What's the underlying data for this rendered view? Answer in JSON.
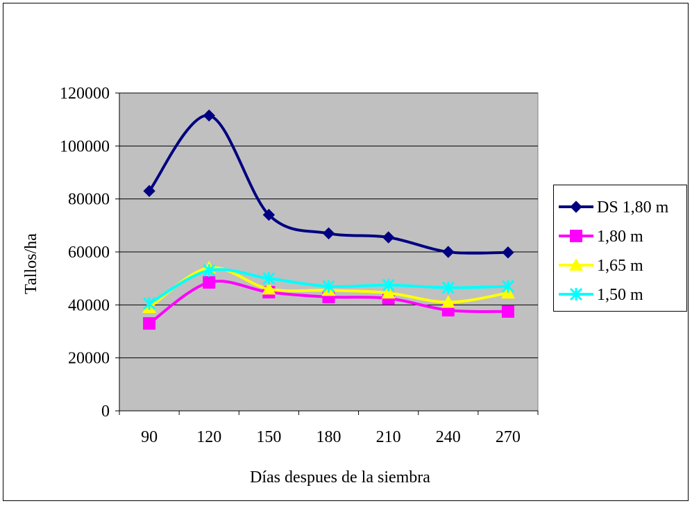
{
  "chart_data": {
    "type": "line",
    "xlabel": "Días despues de la siembra",
    "ylabel": "Tallos/ha",
    "categories": [
      "90",
      "120",
      "150",
      "180",
      "210",
      "240",
      "270"
    ],
    "series": [
      {
        "name": "DS 1,80 m",
        "color": "#000080",
        "marker": "diamond",
        "values": [
          83000,
          111500,
          74000,
          67000,
          65500,
          60000,
          59800
        ]
      },
      {
        "name": "1,80 m",
        "color": "#ff00ff",
        "marker": "square",
        "values": [
          33000,
          48500,
          44800,
          43000,
          42500,
          38000,
          37500
        ]
      },
      {
        "name": "1,65 m",
        "color": "#ffff00",
        "marker": "triangle",
        "values": [
          39000,
          54000,
          46000,
          45500,
          44500,
          41000,
          44500
        ]
      },
      {
        "name": "1,50 m",
        "color": "#00ffff",
        "marker": "cross",
        "values": [
          40500,
          53000,
          50000,
          47000,
          47500,
          46500,
          47000
        ]
      }
    ],
    "ylim": [
      0,
      120000
    ],
    "yticks": [
      0,
      20000,
      40000,
      60000,
      80000,
      100000,
      120000
    ],
    "grid": true,
    "smooth": true,
    "legend": "right"
  }
}
